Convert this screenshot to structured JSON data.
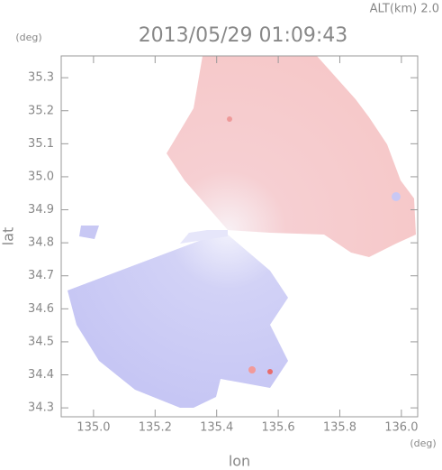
{
  "chart_data": {
    "type": "map",
    "title": "2013/05/29 01:09:43",
    "annotation": "ALT(km) 2.0",
    "xlabel": "lon",
    "ylabel": "lat",
    "xunit": "(deg)",
    "yunit": "(deg)",
    "xlim": [
      134.895,
      136.053
    ],
    "ylim": [
      34.273,
      35.366
    ],
    "xticks": [
      {
        "value": 135.0,
        "label": "135.0"
      },
      {
        "value": 135.2,
        "label": "135.2"
      },
      {
        "value": 135.4,
        "label": "135.4"
      },
      {
        "value": 135.6,
        "label": "135.6"
      },
      {
        "value": 135.8,
        "label": "135.8"
      },
      {
        "value": 136.0,
        "label": "136.0"
      }
    ],
    "yticks": [
      {
        "value": 34.3,
        "label": "34.3"
      },
      {
        "value": 34.4,
        "label": "34.4"
      },
      {
        "value": 34.5,
        "label": "34.5"
      },
      {
        "value": 34.6,
        "label": "34.6"
      },
      {
        "value": 34.7,
        "label": "34.7"
      },
      {
        "value": 34.8,
        "label": "34.8"
      },
      {
        "value": 34.9,
        "label": "34.9"
      },
      {
        "value": 35.0,
        "label": "35.0"
      },
      {
        "value": 35.1,
        "label": "35.1"
      },
      {
        "value": 35.2,
        "label": "35.2"
      },
      {
        "value": 35.3,
        "label": "35.3"
      }
    ]
  }
}
